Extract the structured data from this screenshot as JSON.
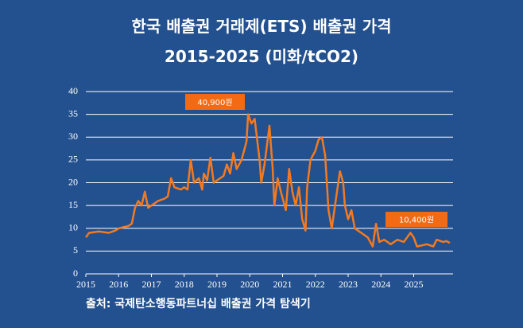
{
  "chart_data": {
    "type": "line",
    "title": "한국 배출권 거래제(ETS) 배출권 가격",
    "subtitle": "2015-2025 (미화/tCO2)",
    "source": "출처: 국제탄소행동파트너십 배출권 가격 탐색기",
    "annotations": [
      "40,900원",
      "10,400원"
    ],
    "color": "#f47a20",
    "annotation_color": "#f26b14",
    "grid": true,
    "xlim": [
      2015,
      2026.2
    ],
    "xticks": [
      2015,
      2016,
      2017,
      2018,
      2019,
      2020,
      2021,
      2022,
      2023,
      2024,
      2025
    ],
    "ylim": [
      0,
      40
    ],
    "yticks": [
      0,
      5,
      10,
      15,
      20,
      25,
      30,
      35,
      40
    ],
    "x": [
      2015.0,
      2015.1,
      2015.4,
      2015.7,
      2015.9,
      2016.0,
      2016.3,
      2016.4,
      2016.5,
      2016.6,
      2016.7,
      2016.8,
      2016.9,
      2017.0,
      2017.2,
      2017.4,
      2017.5,
      2017.6,
      2017.7,
      2017.9,
      2018.0,
      2018.1,
      2018.2,
      2018.3,
      2018.45,
      2018.55,
      2018.6,
      2018.7,
      2018.8,
      2018.9,
      2019.0,
      2019.2,
      2019.3,
      2019.4,
      2019.5,
      2019.6,
      2019.75,
      2019.9,
      2019.95,
      2020.05,
      2020.15,
      2020.3,
      2020.35,
      2020.45,
      2020.6,
      2020.7,
      2020.75,
      2020.85,
      2020.95,
      2021.1,
      2021.2,
      2021.3,
      2021.4,
      2021.5,
      2021.6,
      2021.7,
      2021.75,
      2021.85,
      2022.0,
      2022.1,
      2022.2,
      2022.3,
      2022.4,
      2022.5,
      2022.6,
      2022.7,
      2022.75,
      2022.85,
      2022.9,
      2023.0,
      2023.1,
      2023.2,
      2023.4,
      2023.6,
      2023.75,
      2023.85,
      2023.95,
      2024.1,
      2024.3,
      2024.5,
      2024.7,
      2024.8,
      2024.9,
      2025.0,
      2025.1,
      2025.4,
      2025.6,
      2025.7,
      2025.9,
      2026.0,
      2026.1
    ],
    "values": [
      8,
      9,
      9.3,
      9,
      9.5,
      10,
      10.5,
      11,
      14.5,
      16,
      15,
      18,
      14.5,
      15,
      16,
      16.5,
      17,
      21,
      19,
      18.5,
      19,
      18.5,
      25,
      20,
      21,
      18.5,
      22,
      20.5,
      25.5,
      20,
      20.5,
      21.5,
      24,
      22,
      26.5,
      23,
      25,
      29,
      35,
      33,
      34,
      25,
      20,
      24,
      32.5,
      23,
      15,
      21,
      18,
      14,
      23,
      18,
      15,
      19,
      12,
      9.5,
      19,
      25,
      27,
      29.5,
      30,
      26,
      14,
      10,
      15,
      20,
      22.5,
      20,
      15,
      12,
      14,
      10,
      9,
      8,
      6,
      11,
      7,
      7.5,
      6.5,
      7.5,
      7,
      8,
      9,
      8,
      6,
      6.5,
      6,
      7.5,
      7,
      7.2,
      6.8
    ]
  }
}
